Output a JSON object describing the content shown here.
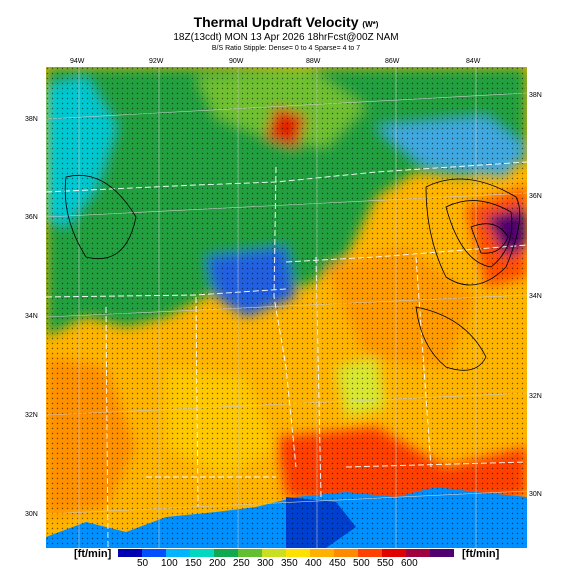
{
  "title": {
    "main": "Thermal Updraft Velocity",
    "main_unit": "(W*)",
    "sub": "18Z(13cdt) MON 13 Apr 2026 18hrFcst@00Z NAM",
    "note": "B/S Ratio Stipple: Dense= 0 to 4 Sparse= 4 to 7"
  },
  "lon_labels": [
    "94W",
    "92W",
    "90W",
    "88W",
    "86W",
    "84W"
  ],
  "lat_labels": [
    "38N",
    "36N",
    "34N",
    "32N",
    "30N"
  ],
  "colorbar": {
    "unit": "[ft/min]",
    "ticks": [
      "50",
      "100",
      "150",
      "200",
      "250",
      "300",
      "350",
      "400",
      "450",
      "500",
      "550",
      "600"
    ],
    "colors": [
      "#0000b0",
      "#0050ff",
      "#00b4ff",
      "#00d8c0",
      "#10a850",
      "#60c030",
      "#c8e020",
      "#ffe000",
      "#ffb000",
      "#ff8a00",
      "#ff4000",
      "#e00000",
      "#a00040",
      "#500070"
    ]
  }
}
